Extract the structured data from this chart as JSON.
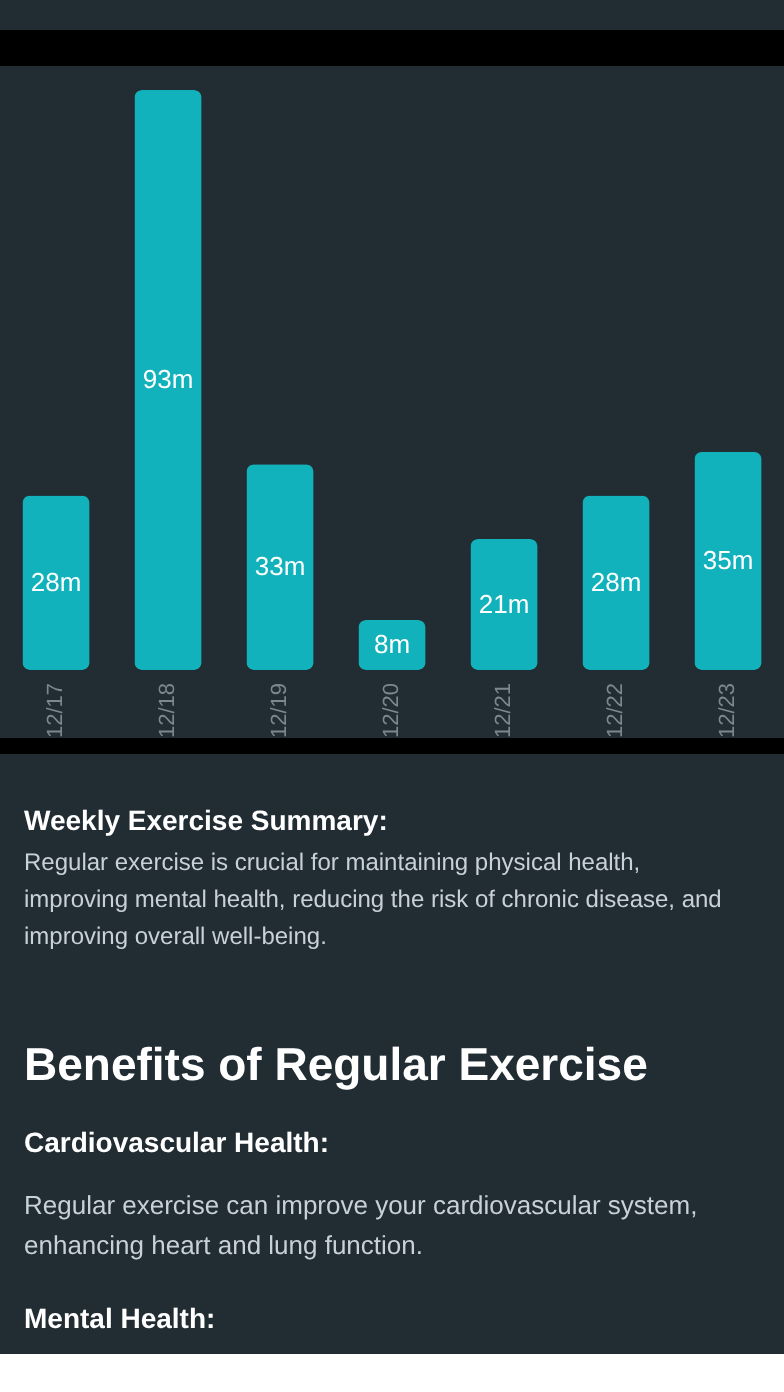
{
  "chart_data": {
    "type": "bar",
    "categories": [
      "12/17",
      "12/18",
      "12/19",
      "12/20",
      "12/21",
      "12/22",
      "12/23"
    ],
    "values": [
      28,
      93,
      33,
      8,
      21,
      28,
      35
    ],
    "value_labels": [
      "28m",
      "93m",
      "33m",
      "8m",
      "21m",
      "28m",
      "35m"
    ],
    "color": "#12b2bc",
    "grid": false,
    "tick_labels": "x",
    "annotations": [
      "Weekly Exercise Summary:",
      "Regular exercise is crucial for maintaining physical health, improving mental health, reducing the risk of chronic disease, and improving overall well-being.",
      "Benefits of Regular Exercise",
      "Cardiovascular Health:",
      "Regular exercise can improve your cardiovascular system, enhancing heart and lung function.",
      "Mental Health:"
    ]
  }
}
